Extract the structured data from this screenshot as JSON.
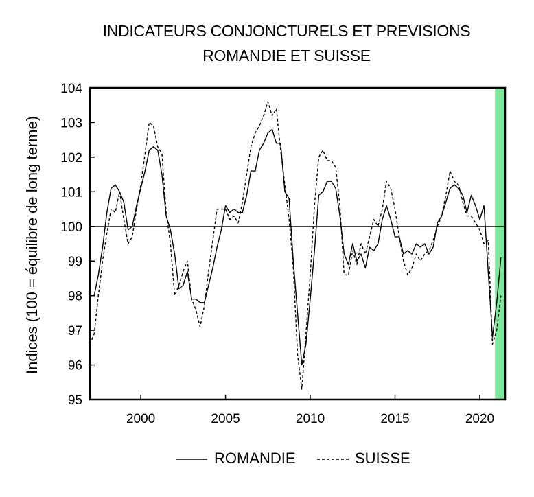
{
  "chart_data": {
    "type": "line",
    "title": "INDICATEURS CONJONCTURELS ET PREVISIONS",
    "subtitle": "ROMANDIE ET SUISSE",
    "xlabel": "",
    "ylabel": "Indices (100 = équilibre de long terme)",
    "xlim": [
      1997.0,
      2021.5
    ],
    "ylim": [
      95,
      104
    ],
    "yticks": [
      95,
      96,
      97,
      98,
      99,
      100,
      101,
      102,
      103,
      104
    ],
    "xticks": [
      2000,
      2005,
      2010,
      2015,
      2020
    ],
    "reference_line": 100,
    "forecast_band": {
      "from": 2020.9,
      "to": 2021.5,
      "color": "#7ee89a"
    },
    "legend_position": "bottom",
    "series": [
      {
        "name": "ROMANDIE",
        "style": "solid",
        "x": [
          1997.0,
          1997.25,
          1997.5,
          1997.75,
          1998.0,
          1998.25,
          1998.5,
          1998.75,
          1999.0,
          1999.25,
          1999.5,
          1999.75,
          2000.0,
          2000.25,
          2000.5,
          2000.75,
          2001.0,
          2001.25,
          2001.5,
          2001.75,
          2002.0,
          2002.25,
          2002.5,
          2002.75,
          2003.0,
          2003.25,
          2003.5,
          2003.75,
          2004.0,
          2004.25,
          2004.5,
          2004.75,
          2005.0,
          2005.25,
          2005.5,
          2005.75,
          2006.0,
          2006.25,
          2006.5,
          2006.75,
          2007.0,
          2007.25,
          2007.5,
          2007.75,
          2008.0,
          2008.25,
          2008.5,
          2008.75,
          2009.0,
          2009.25,
          2009.5,
          2009.75,
          2010.0,
          2010.25,
          2010.5,
          2010.75,
          2011.0,
          2011.25,
          2011.5,
          2011.75,
          2012.0,
          2012.25,
          2012.5,
          2012.75,
          2013.0,
          2013.25,
          2013.5,
          2013.75,
          2014.0,
          2014.25,
          2014.5,
          2014.75,
          2015.0,
          2015.25,
          2015.5,
          2015.75,
          2016.0,
          2016.25,
          2016.5,
          2016.75,
          2017.0,
          2017.25,
          2017.5,
          2017.75,
          2018.0,
          2018.25,
          2018.5,
          2018.75,
          2019.0,
          2019.25,
          2019.5,
          2019.75,
          2020.0,
          2020.25,
          2020.5,
          2020.75,
          2021.0,
          2021.25
        ],
        "values": [
          98.0,
          98.0,
          98.6,
          99.4,
          100.4,
          101.1,
          101.2,
          101.0,
          100.7,
          99.9,
          100.0,
          100.6,
          101.1,
          101.6,
          102.2,
          102.3,
          102.2,
          101.5,
          100.3,
          99.9,
          99.2,
          98.2,
          98.3,
          98.7,
          97.9,
          97.9,
          97.8,
          97.8,
          98.3,
          98.8,
          99.4,
          99.9,
          100.6,
          100.4,
          100.5,
          100.4,
          100.4,
          100.9,
          101.6,
          101.6,
          102.2,
          102.4,
          102.7,
          102.8,
          102.4,
          102.4,
          101.0,
          100.8,
          99.0,
          97.5,
          96.0,
          96.6,
          97.9,
          99.3,
          100.9,
          101.0,
          101.3,
          101.3,
          101.1,
          100.3,
          99.2,
          98.9,
          99.5,
          99.0,
          99.2,
          98.8,
          99.4,
          99.3,
          99.5,
          100.2,
          100.6,
          100.2,
          99.7,
          99.7,
          99.2,
          99.3,
          99.2,
          99.5,
          99.4,
          99.5,
          99.2,
          99.4,
          100.1,
          100.3,
          100.7,
          101.1,
          101.2,
          101.1,
          100.9,
          100.4,
          100.9,
          100.6,
          100.2,
          100.6,
          98.7,
          96.8,
          97.8,
          99.1
        ]
      },
      {
        "name": "SUISSE",
        "style": "dashed",
        "x": [
          1997.0,
          1997.25,
          1997.5,
          1997.75,
          1998.0,
          1998.25,
          1998.5,
          1998.75,
          1999.0,
          1999.25,
          1999.5,
          1999.75,
          2000.0,
          2000.25,
          2000.5,
          2000.75,
          2001.0,
          2001.25,
          2001.5,
          2001.75,
          2002.0,
          2002.25,
          2002.5,
          2002.75,
          2003.0,
          2003.25,
          2003.5,
          2003.75,
          2004.0,
          2004.25,
          2004.5,
          2004.75,
          2005.0,
          2005.25,
          2005.5,
          2005.75,
          2006.0,
          2006.25,
          2006.5,
          2006.75,
          2007.0,
          2007.25,
          2007.5,
          2007.75,
          2008.0,
          2008.25,
          2008.5,
          2008.75,
          2009.0,
          2009.25,
          2009.5,
          2009.75,
          2010.0,
          2010.25,
          2010.5,
          2010.75,
          2011.0,
          2011.25,
          2011.5,
          2011.75,
          2012.0,
          2012.25,
          2012.5,
          2012.75,
          2013.0,
          2013.25,
          2013.5,
          2013.75,
          2014.0,
          2014.25,
          2014.5,
          2014.75,
          2015.0,
          2015.25,
          2015.5,
          2015.75,
          2016.0,
          2016.25,
          2016.5,
          2016.75,
          2017.0,
          2017.25,
          2017.5,
          2017.75,
          2018.0,
          2018.25,
          2018.5,
          2018.75,
          2019.0,
          2019.25,
          2019.5,
          2019.75,
          2020.0,
          2020.25,
          2020.5,
          2020.75,
          2021.0,
          2021.25
        ],
        "values": [
          96.6,
          96.9,
          98.0,
          99.0,
          99.8,
          100.5,
          100.4,
          101.0,
          100.2,
          99.5,
          99.7,
          100.5,
          101.2,
          102.1,
          103.0,
          102.9,
          102.3,
          102.1,
          100.4,
          99.5,
          98.0,
          98.3,
          98.7,
          99.0,
          97.9,
          97.6,
          97.1,
          97.7,
          98.7,
          99.6,
          100.5,
          100.5,
          100.5,
          100.2,
          100.3,
          100.1,
          100.7,
          101.5,
          102.3,
          102.7,
          102.9,
          103.2,
          103.6,
          103.2,
          103.4,
          102.2,
          101.2,
          100.2,
          98.8,
          96.3,
          95.3,
          96.9,
          98.6,
          100.6,
          102.0,
          102.2,
          101.9,
          101.9,
          101.7,
          100.6,
          98.6,
          98.6,
          99.3,
          98.9,
          99.5,
          99.2,
          99.7,
          100.2,
          100.0,
          100.5,
          101.3,
          101.1,
          100.5,
          99.7,
          99.0,
          98.6,
          98.8,
          99.2,
          99.0,
          99.2,
          99.3,
          99.6,
          100.0,
          100.3,
          100.9,
          101.6,
          101.3,
          101.2,
          100.7,
          100.3,
          100.3,
          100.1,
          99.9,
          99.5,
          99.6,
          96.6,
          97.0,
          98.0
        ]
      }
    ]
  }
}
